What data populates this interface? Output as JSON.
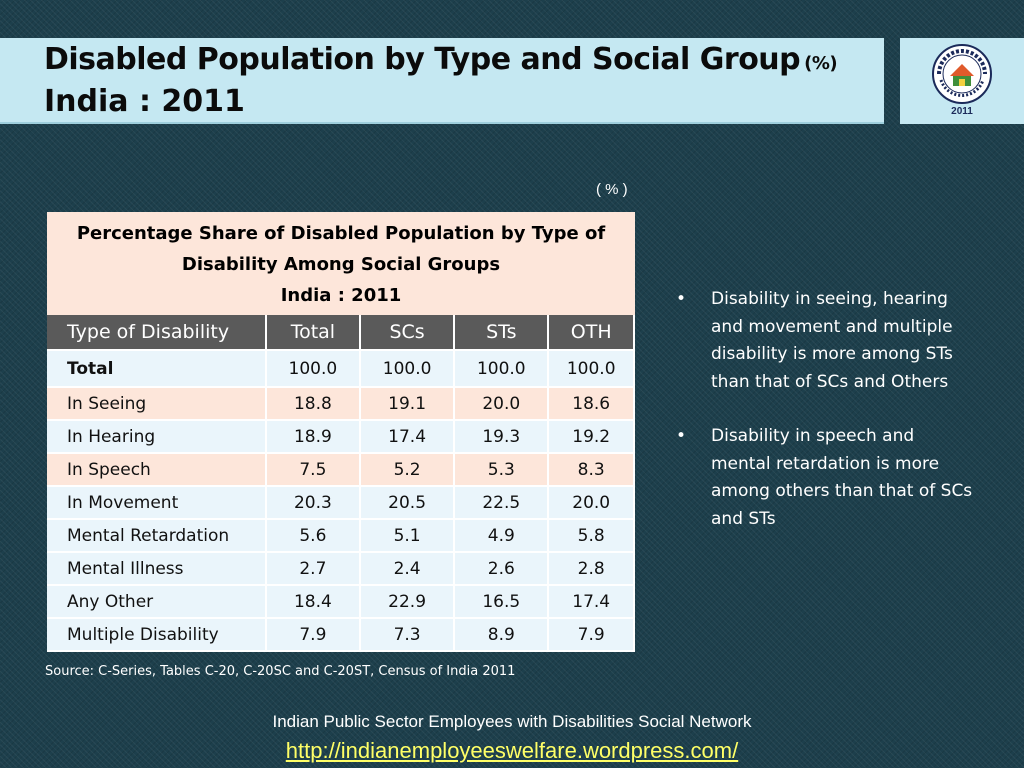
{
  "header": {
    "title_line1": "Disabled Population by Type and Social Group",
    "title_unit": "(%)",
    "title_line2": "India : 2011"
  },
  "logo": {
    "icon": "census-of-india-emblem-icon",
    "year": "2011"
  },
  "unit_note": "( % )",
  "table": {
    "caption_line1": "Percentage Share of Disabled Population by Type of",
    "caption_line2": "Disability Among Social Groups",
    "caption_line3": "India : 2011",
    "columns": [
      "Type of Disability",
      "Total",
      "SCs",
      "STs",
      "OTH"
    ],
    "rows": [
      {
        "label": "Total",
        "values": [
          "100.0",
          "100.0",
          "100.0",
          "100.0"
        ]
      },
      {
        "label": "In Seeing",
        "values": [
          "18.8",
          "19.1",
          "20.0",
          "18.6"
        ]
      },
      {
        "label": "In Hearing",
        "values": [
          "18.9",
          "17.4",
          "19.3",
          "19.2"
        ]
      },
      {
        "label": "In Speech",
        "values": [
          "7.5",
          "5.2",
          "5.3",
          "8.3"
        ]
      },
      {
        "label": "In Movement",
        "values": [
          "20.3",
          "20.5",
          "22.5",
          "20.0"
        ]
      },
      {
        "label": "Mental Retardation",
        "values": [
          "5.6",
          "5.1",
          "4.9",
          "5.8"
        ]
      },
      {
        "label": "Mental Illness",
        "values": [
          "2.7",
          "2.4",
          "2.6",
          "2.8"
        ]
      },
      {
        "label": "Any Other",
        "values": [
          "18.4",
          "22.9",
          "16.5",
          "17.4"
        ]
      },
      {
        "label": "Multiple Disability",
        "values": [
          "7.9",
          "7.3",
          "8.9",
          "7.9"
        ]
      }
    ]
  },
  "bullets": [
    {
      "mark": "•",
      "text": "Disability in seeing, hearing and movement and multiple disability is more among STs than that of SCs and Others"
    },
    {
      "mark": "•",
      "text": "Disability in speech and mental retardation is more among others than that of SCs and STs"
    }
  ],
  "source": "Source: C-Series, Tables C-20, C-20SC and C-20ST, Census of India 2011",
  "footer": {
    "org": "Indian Public Sector Employees with Disabilities Social Network",
    "link": "http://indianemployeeswelfare.wordpress.com/"
  },
  "colors": {
    "background": "#1d3f4c",
    "title_bar": "#c5e8f2",
    "header_row": "#5a5a5a",
    "row_light": "#eaf5fb",
    "row_peach": "#fde6da",
    "link": "#ffff66"
  }
}
